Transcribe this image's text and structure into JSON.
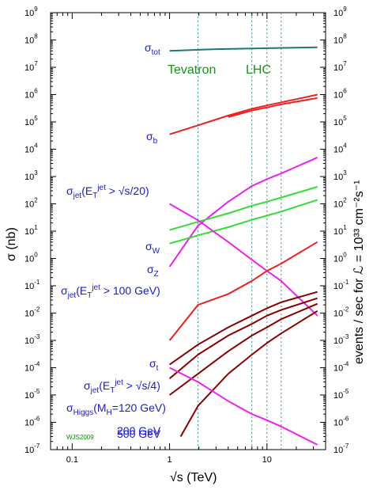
{
  "chart_data": {
    "type": "line",
    "xlabel": "√s (TeV)",
    "ylabel_left": "σ (nb)",
    "ylabel_right": "events / sec for ℒ = 10³³ cm⁻²s⁻¹",
    "x_scale": "log",
    "y_scale": "log",
    "xlim": [
      0.06,
      40
    ],
    "ylim": [
      1e-07,
      1000000000.0
    ],
    "x_ticks": [
      {
        "value": 0.1,
        "label": "0.1"
      },
      {
        "value": 1,
        "label": "1"
      },
      {
        "value": 10,
        "label": "10"
      }
    ],
    "y_ticks": [
      {
        "exp": -7,
        "label": "10"
      },
      {
        "exp": -6,
        "label": "10"
      },
      {
        "exp": -5,
        "label": "10"
      },
      {
        "exp": -4,
        "label": "10"
      },
      {
        "exp": -3,
        "label": "10"
      },
      {
        "exp": -2,
        "label": "10"
      },
      {
        "exp": -1,
        "label": "10"
      },
      {
        "exp": 0,
        "label": "10"
      },
      {
        "exp": 1,
        "label": "10"
      },
      {
        "exp": 2,
        "label": "10"
      },
      {
        "exp": 3,
        "label": "10"
      },
      {
        "exp": 4,
        "label": "10"
      },
      {
        "exp": 5,
        "label": "10"
      },
      {
        "exp": 6,
        "label": "10"
      },
      {
        "exp": 7,
        "label": "10"
      },
      {
        "exp": 8,
        "label": "10"
      },
      {
        "exp": 9,
        "label": "10"
      }
    ],
    "y_tick_exponents": [
      "-7",
      "-6",
      "-5",
      "-4",
      "-3",
      "-2",
      "-1",
      "0",
      "1",
      "2",
      "3",
      "4",
      "5",
      "6",
      "7",
      "8",
      "9"
    ],
    "right_y_ticks_offset_exp": 0,
    "vlines": [
      1.96,
      7,
      10,
      14
    ],
    "vline_color": "#2a9a9a",
    "annotations": [
      {
        "text": "Tevatron",
        "color": "#119911"
      },
      {
        "text": "LHC",
        "color": "#119911"
      }
    ],
    "credit": "WJS2009",
    "series": [
      {
        "name": "σtot",
        "color": "#1a7a7a",
        "x": [
          1.0,
          3.0,
          10.0,
          33.0
        ],
        "values": [
          40000000.0,
          46000000.0,
          50000000.0,
          54000000.0
        ]
      },
      {
        "name": "σb",
        "color": "#ee2020",
        "x": [
          1.0,
          1.96,
          4.0,
          7.0,
          10.0,
          14.0,
          20.0,
          33.0
        ],
        "values": [
          35000.0,
          75000.0,
          170000.0,
          300000.0,
          400000.0,
          520000.0,
          680000.0,
          1000000.0
        ]
      },
      {
        "name": "σb-band",
        "color": "#ee2020",
        "x": [
          4.0,
          7.0,
          10.0,
          14.0,
          20.0,
          33.0
        ],
        "values": [
          150000.0,
          260000.0,
          340000.0,
          440000.0,
          550000.0,
          750000.0
        ]
      },
      {
        "name": "σjet(ET>√s/20)",
        "color": "#ee22ee",
        "x": [
          1.0,
          1.96,
          4.0,
          7.0,
          10.0,
          14.0,
          33.0
        ],
        "values": [
          0.5,
          16.0,
          120.0,
          450.0,
          800.0,
          1300.0,
          5000.0
        ]
      },
      {
        "name": "σW",
        "color": "#33dd33",
        "x": [
          1.0,
          1.96,
          4.0,
          7.0,
          10.0,
          14.0,
          33.0
        ],
        "values": [
          11.0,
          22.0,
          45.0,
          85.0,
          120.0,
          170.0,
          420.0
        ]
      },
      {
        "name": "σZ",
        "color": "#33dd33",
        "x": [
          1.0,
          1.96,
          4.0,
          7.0,
          10.0,
          14.0,
          33.0
        ],
        "values": [
          3.5,
          7.0,
          14.0,
          26.0,
          37.0,
          52.0,
          140.0
        ]
      },
      {
        "name": "σjet(ET>100 GeV)",
        "color": "#ee22ee",
        "x": [
          1.0,
          1.96,
          4.0,
          7.0,
          10.0,
          14.0,
          33.0
        ],
        "values": [
          100.0,
          25.0,
          4.0,
          0.9,
          0.35,
          0.15,
          0.008
        ]
      },
      {
        "name": "σjet(ET>100 GeV) high",
        "color": "#ee2020",
        "x": [
          1.0,
          1.96,
          4.0,
          7.0,
          10.0,
          14.0,
          33.0
        ],
        "values": [
          0.001,
          0.02,
          0.05,
          0.15,
          0.35,
          0.65,
          4.0
        ]
      },
      {
        "name": "σt",
        "color": "#880000",
        "x": [
          1.0,
          1.96,
          4.0,
          7.0,
          10.0,
          14.0,
          33.0
        ],
        "values": [
          0.00013,
          0.0007,
          0.003,
          0.008,
          0.015,
          0.025,
          0.06
        ]
      },
      {
        "name": "σjet(ET>√s/4)",
        "color": "#880000",
        "x": [
          1.0,
          1.96,
          4.0,
          7.0,
          10.0,
          14.0,
          33.0
        ],
        "values": [
          4e-05,
          0.0003,
          0.0015,
          0.004,
          0.008,
          0.013,
          0.035
        ]
      },
      {
        "name": "σHiggs(MH=120 GeV)",
        "color": "#880000",
        "x": [
          1.0,
          1.96,
          4.0,
          7.0,
          10.0,
          14.0,
          33.0
        ],
        "values": [
          1e-05,
          6e-05,
          0.0004,
          0.0015,
          0.003,
          0.006,
          0.022
        ]
      },
      {
        "name": "200 GeV",
        "color": "#880000",
        "x": [
          1.3,
          1.96,
          4.0,
          7.0,
          10.0,
          14.0,
          33.0
        ],
        "values": [
          3e-07,
          4e-06,
          6e-05,
          0.0003,
          0.0008,
          0.0018,
          0.012
        ]
      },
      {
        "name": "500 GeV",
        "color": "#ee22ee",
        "x": [
          1.0,
          1.96,
          4.0,
          7.0,
          10.0,
          14.0,
          33.0
        ],
        "values": [
          0.0001,
          3e-05,
          6e-06,
          2e-06,
          1.2e-06,
          7e-07,
          1.5e-07
        ]
      }
    ],
    "series_labels": [
      {
        "key": "tot",
        "text": "σ",
        "sub": "tot"
      },
      {
        "key": "b",
        "text": "σ",
        "sub": "b"
      },
      {
        "key": "jet20",
        "text": "σ",
        "sub": "jet",
        "rest": "(E",
        "sub2": "T",
        "sup": "jet",
        "tail": " > √s/20)"
      },
      {
        "key": "W",
        "text": "σ",
        "sub": "W"
      },
      {
        "key": "Z",
        "text": "σ",
        "sub": "Z"
      },
      {
        "key": "jet100",
        "text": "σ",
        "sub": "jet",
        "rest": "(E",
        "sub2": "T",
        "sup": "jet",
        "tail": " > 100 GeV)"
      },
      {
        "key": "t",
        "text": "σ",
        "sub": "t"
      },
      {
        "key": "jet4",
        "text": "σ",
        "sub": "jet",
        "rest": "(E",
        "sub2": "T",
        "sup": "jet",
        "tail": " > √s/4)"
      },
      {
        "key": "higgs",
        "text": "σ",
        "sub": "Higgs",
        "rest": "(M",
        "sub2": "H",
        "tail": "=120 GeV)"
      },
      {
        "key": "h200",
        "text": "200 GeV"
      },
      {
        "key": "h500",
        "text": "500 GeV"
      }
    ]
  }
}
